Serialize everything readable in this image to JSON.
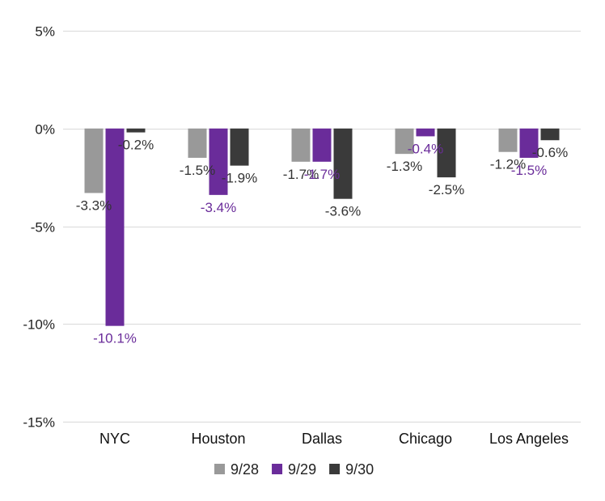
{
  "chart_data": {
    "type": "bar",
    "title": "",
    "xlabel": "",
    "ylabel": "",
    "categories": [
      "NYC",
      "Houston",
      "Dallas",
      "Chicago",
      "Los Angeles"
    ],
    "series": [
      {
        "name": "9/28",
        "color": "#999999",
        "label_color": "#333333",
        "values": [
          -3.3,
          -1.5,
          -1.7,
          -1.3,
          -1.2
        ],
        "labels": [
          "-3.3%",
          "-1.5%",
          "-1.7%",
          "-1.3%",
          "-1.2%"
        ]
      },
      {
        "name": "9/29",
        "color": "#6a2c9a",
        "label_color": "#6a2c9a",
        "values": [
          -10.1,
          -3.4,
          -1.7,
          -0.4,
          -1.5
        ],
        "labels": [
          "-10.1%",
          "-3.4%",
          "-1.7%",
          "-0.4%",
          "-1.5%"
        ]
      },
      {
        "name": "9/30",
        "color": "#3a3a3a",
        "label_color": "#333333",
        "values": [
          -0.2,
          -1.9,
          -3.6,
          -2.5,
          -0.6
        ],
        "labels": [
          "-0.2%",
          "-1.9%",
          "-3.6%",
          "-2.5%",
          "-0.6%"
        ]
      }
    ],
    "ylim": [
      -15,
      5
    ],
    "yticks": [
      5,
      0,
      -5,
      -10,
      -15
    ],
    "ytick_labels": [
      "5%",
      "0%",
      "-5%",
      "-10%",
      "-15%"
    ],
    "grid": true,
    "legend_position": "bottom"
  }
}
